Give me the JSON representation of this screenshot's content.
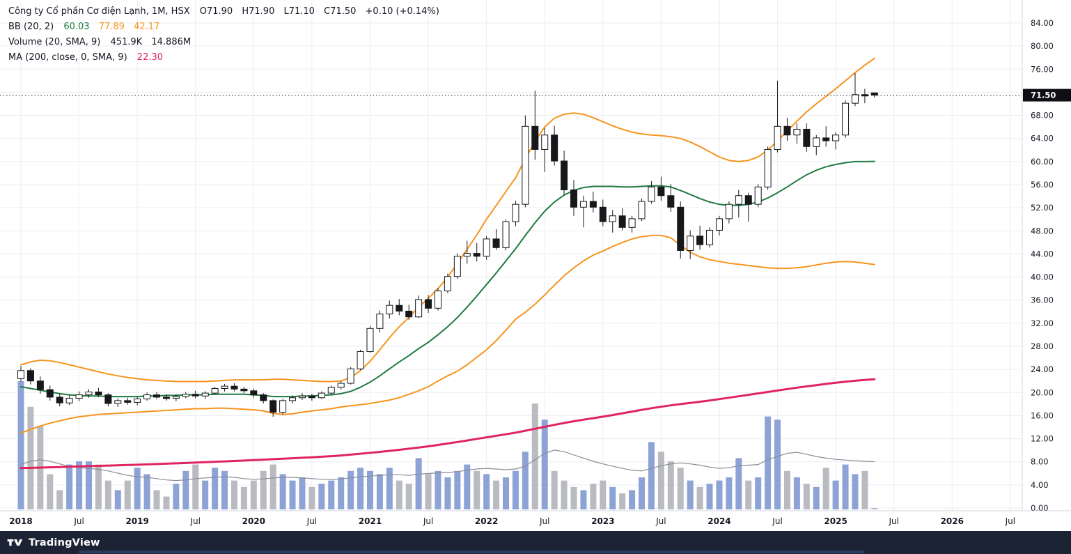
{
  "legend": {
    "symbol": {
      "title": "Công ty Cổ phần Cơ điện Lạnh, 1M, HSX",
      "open": "O71.90",
      "high": "H71.90",
      "low": "L71.10",
      "close": "C71.50",
      "change": "+0.10 (+0.14%)"
    },
    "bb": {
      "label": "BB (20, 2)",
      "basis": "60.03",
      "upper": "77.89",
      "lower": "42.17"
    },
    "volume": {
      "label": "Volume (20, SMA, 9)",
      "value": "451.9K",
      "sma": "14.886M"
    },
    "ma": {
      "label": "MA (200, close, 0, SMA, 9)",
      "value": "22.30"
    }
  },
  "price_label": "71.50",
  "footer": {
    "brand": "TradingView"
  },
  "chart_data": {
    "type": "candlestick",
    "timeframe": "1M",
    "y_axis": {
      "min": 0,
      "max": 84,
      "step": 4
    },
    "last_price": 71.5,
    "x_ticks": [
      [
        0,
        "2018",
        true
      ],
      [
        6,
        "Jul",
        false
      ],
      [
        12,
        "2019",
        true
      ],
      [
        18,
        "Jul",
        false
      ],
      [
        24,
        "2020",
        true
      ],
      [
        30,
        "Jul",
        false
      ],
      [
        36,
        "2021",
        true
      ],
      [
        42,
        "Jul",
        false
      ],
      [
        48,
        "2022",
        true
      ],
      [
        54,
        "Jul",
        false
      ],
      [
        60,
        "2023",
        true
      ],
      [
        66,
        "Jul",
        false
      ],
      [
        72,
        "2024",
        true
      ],
      [
        78,
        "Jul",
        false
      ],
      [
        84,
        "2025",
        true
      ],
      [
        90,
        "Jul",
        false
      ],
      [
        96,
        "2026",
        true
      ],
      [
        102,
        "Jul",
        false
      ]
    ],
    "candles": [
      [
        "2018-01",
        22.4,
        24.6,
        21.9,
        23.8,
        40
      ],
      [
        "2018-02",
        23.8,
        24.2,
        21.4,
        22.0,
        32
      ],
      [
        "2018-03",
        22.0,
        22.8,
        19.8,
        20.5,
        26
      ],
      [
        "2018-04",
        20.5,
        21.2,
        18.6,
        19.2,
        11
      ],
      [
        "2018-05",
        19.2,
        19.8,
        17.6,
        18.2,
        6
      ],
      [
        "2018-06",
        18.2,
        19.6,
        17.8,
        19.0,
        14
      ],
      [
        "2018-07",
        19.0,
        20.2,
        18.5,
        19.6,
        15
      ],
      [
        "2018-08",
        19.6,
        20.6,
        19.1,
        20.1,
        15
      ],
      [
        "2018-09",
        20.1,
        20.8,
        19.2,
        19.6,
        14
      ],
      [
        "2018-10",
        19.6,
        19.9,
        17.6,
        18.1,
        9
      ],
      [
        "2018-11",
        18.1,
        19.0,
        17.5,
        18.6,
        6
      ],
      [
        "2018-12",
        18.6,
        19.1,
        17.9,
        18.3,
        9
      ],
      [
        "2019-01",
        18.3,
        19.2,
        17.8,
        18.9,
        13
      ],
      [
        "2019-02",
        18.9,
        20.0,
        18.6,
        19.6,
        11
      ],
      [
        "2019-03",
        19.6,
        20.1,
        18.9,
        19.2,
        6
      ],
      [
        "2019-04",
        19.2,
        19.7,
        18.6,
        19.0,
        4
      ],
      [
        "2019-05",
        19.0,
        19.7,
        18.5,
        19.3,
        8
      ],
      [
        "2019-06",
        19.3,
        20.1,
        19.0,
        19.7,
        12
      ],
      [
        "2019-07",
        19.7,
        20.3,
        19.0,
        19.4,
        14
      ],
      [
        "2019-08",
        19.4,
        20.2,
        18.9,
        19.9,
        9
      ],
      [
        "2019-09",
        19.9,
        21.0,
        19.6,
        20.7,
        13
      ],
      [
        "2019-10",
        20.7,
        21.5,
        20.2,
        21.1,
        12
      ],
      [
        "2019-11",
        21.1,
        21.6,
        20.2,
        20.6,
        9
      ],
      [
        "2019-12",
        20.6,
        21.0,
        19.9,
        20.3,
        7
      ],
      [
        "2020-01",
        20.3,
        20.7,
        19.1,
        19.6,
        9
      ],
      [
        "2020-02",
        19.6,
        19.9,
        18.1,
        18.6,
        12
      ],
      [
        "2020-03",
        18.6,
        18.8,
        15.8,
        16.6,
        14
      ],
      [
        "2020-04",
        16.6,
        18.9,
        16.2,
        18.6,
        11
      ],
      [
        "2020-05",
        18.6,
        19.5,
        18.1,
        19.1,
        9
      ],
      [
        "2020-06",
        19.1,
        19.9,
        18.7,
        19.4,
        10
      ],
      [
        "2020-07",
        19.4,
        19.8,
        18.6,
        19.1,
        7
      ],
      [
        "2020-08",
        19.1,
        20.2,
        18.9,
        19.9,
        8
      ],
      [
        "2020-09",
        19.9,
        21.2,
        19.6,
        20.9,
        9
      ],
      [
        "2020-10",
        20.9,
        22.0,
        20.5,
        21.6,
        10
      ],
      [
        "2020-11",
        21.6,
        24.4,
        21.4,
        24.1,
        12
      ],
      [
        "2020-12",
        24.1,
        27.4,
        23.9,
        27.1,
        13
      ],
      [
        "2021-01",
        27.1,
        31.5,
        26.9,
        31.1,
        12
      ],
      [
        "2021-02",
        31.1,
        34.2,
        30.4,
        33.6,
        11
      ],
      [
        "2021-03",
        33.6,
        35.9,
        32.8,
        35.1,
        13
      ],
      [
        "2021-04",
        35.1,
        36.2,
        33.4,
        34.1,
        9
      ],
      [
        "2021-05",
        34.1,
        35.2,
        32.6,
        33.1,
        8
      ],
      [
        "2021-06",
        33.1,
        36.8,
        32.9,
        36.1,
        16
      ],
      [
        "2021-07",
        36.1,
        36.9,
        33.8,
        34.6,
        11
      ],
      [
        "2021-08",
        34.6,
        38.1,
        34.2,
        37.6,
        12
      ],
      [
        "2021-09",
        37.6,
        40.6,
        37.2,
        40.1,
        10
      ],
      [
        "2021-10",
        40.1,
        44.1,
        39.7,
        43.6,
        12
      ],
      [
        "2021-11",
        43.6,
        46.3,
        42.3,
        44.1,
        14
      ],
      [
        "2021-12",
        44.1,
        45.9,
        42.7,
        43.6,
        12
      ],
      [
        "2022-01",
        43.6,
        47.1,
        43.0,
        46.6,
        11
      ],
      [
        "2022-02",
        46.6,
        48.3,
        44.7,
        45.1,
        9
      ],
      [
        "2022-03",
        45.1,
        50.0,
        44.6,
        49.6,
        10
      ],
      [
        "2022-04",
        49.6,
        53.2,
        48.8,
        52.6,
        12
      ],
      [
        "2022-05",
        52.6,
        68.0,
        52.1,
        66.1,
        18
      ],
      [
        "2022-06",
        66.1,
        72.3,
        60.3,
        62.1,
        33
      ],
      [
        "2022-07",
        62.1,
        65.8,
        58.2,
        64.6,
        28
      ],
      [
        "2022-08",
        64.6,
        66.2,
        59.3,
        60.1,
        12
      ],
      [
        "2022-09",
        60.1,
        61.9,
        54.2,
        55.1,
        9
      ],
      [
        "2022-10",
        55.1,
        56.8,
        50.6,
        52.1,
        7
      ],
      [
        "2022-11",
        52.1,
        54.1,
        48.6,
        53.1,
        6
      ],
      [
        "2022-12",
        53.1,
        54.8,
        51.2,
        52.1,
        8
      ],
      [
        "2023-01",
        52.1,
        53.4,
        48.8,
        49.6,
        9
      ],
      [
        "2023-02",
        49.6,
        51.6,
        47.7,
        50.6,
        7
      ],
      [
        "2023-03",
        50.6,
        51.9,
        48.1,
        48.6,
        5
      ],
      [
        "2023-04",
        48.6,
        50.6,
        47.7,
        50.1,
        6
      ],
      [
        "2023-05",
        50.1,
        53.6,
        49.7,
        53.1,
        10
      ],
      [
        "2023-06",
        53.1,
        56.6,
        52.7,
        55.6,
        21
      ],
      [
        "2023-07",
        55.6,
        57.4,
        53.2,
        54.1,
        18
      ],
      [
        "2023-08",
        54.1,
        56.1,
        51.3,
        52.1,
        15
      ],
      [
        "2023-09",
        52.1,
        53.1,
        43.2,
        44.6,
        13
      ],
      [
        "2023-10",
        44.6,
        48.1,
        43.1,
        47.1,
        9
      ],
      [
        "2023-11",
        47.1,
        48.9,
        44.7,
        45.6,
        7
      ],
      [
        "2023-12",
        45.6,
        48.6,
        45.1,
        48.1,
        8
      ],
      [
        "2024-01",
        48.1,
        50.6,
        47.2,
        50.1,
        9
      ],
      [
        "2024-02",
        50.1,
        53.1,
        49.3,
        52.6,
        10
      ],
      [
        "2024-03",
        52.6,
        55.1,
        50.3,
        54.1,
        16
      ],
      [
        "2024-04",
        54.1,
        54.6,
        49.6,
        52.6,
        9
      ],
      [
        "2024-05",
        52.6,
        56.1,
        52.1,
        55.6,
        10
      ],
      [
        "2024-06",
        55.6,
        62.6,
        55.1,
        62.1,
        29
      ],
      [
        "2024-07",
        62.1,
        74.0,
        61.6,
        66.1,
        28
      ],
      [
        "2024-08",
        66.1,
        67.6,
        63.6,
        64.6,
        12
      ],
      [
        "2024-09",
        64.6,
        66.6,
        63.1,
        65.6,
        10
      ],
      [
        "2024-10",
        65.6,
        66.6,
        61.7,
        62.6,
        8
      ],
      [
        "2024-11",
        62.6,
        64.6,
        61.1,
        64.1,
        7
      ],
      [
        "2024-12",
        64.1,
        66.1,
        62.6,
        63.6,
        13
      ],
      [
        "2025-01",
        63.6,
        65.1,
        62.1,
        64.6,
        9
      ],
      [
        "2025-02",
        64.6,
        70.6,
        64.1,
        70.1,
        14
      ],
      [
        "2025-03",
        70.1,
        75.3,
        69.6,
        71.6,
        11
      ],
      [
        "2025-04",
        71.6,
        72.6,
        70.1,
        71.4,
        12
      ],
      [
        "2025-05",
        71.9,
        71.9,
        71.1,
        71.5,
        0.45
      ]
    ],
    "bb_upper": [
      24.8,
      25.3,
      25.6,
      25.5,
      25.2,
      24.8,
      24.4,
      24.0,
      23.6,
      23.2,
      22.9,
      22.6,
      22.4,
      22.2,
      22.1,
      22.0,
      21.9,
      21.9,
      21.9,
      21.9,
      22.0,
      22.1,
      22.2,
      22.2,
      22.2,
      22.2,
      22.3,
      22.3,
      22.2,
      22.1,
      22.0,
      21.9,
      21.9,
      22.0,
      22.6,
      23.8,
      25.4,
      27.4,
      29.5,
      31.4,
      33.0,
      34.8,
      36.3,
      38.0,
      40.0,
      42.4,
      44.8,
      47.3,
      50.0,
      52.4,
      54.8,
      57.2,
      60.5,
      63.5,
      66.0,
      67.5,
      68.2,
      68.4,
      68.2,
      67.6,
      66.9,
      66.2,
      65.6,
      65.1,
      64.8,
      64.6,
      64.5,
      64.3,
      64.0,
      63.4,
      62.6,
      61.7,
      60.8,
      60.2,
      60.0,
      60.2,
      60.8,
      62.0,
      63.6,
      65.3,
      67.0,
      68.6,
      70.0,
      71.3,
      72.6,
      74.0,
      75.4,
      76.7,
      77.89
    ],
    "bb_basis": [
      21.0,
      20.7,
      20.4,
      20.1,
      19.8,
      19.6,
      19.5,
      19.4,
      19.4,
      19.3,
      19.3,
      19.3,
      19.3,
      19.4,
      19.4,
      19.5,
      19.5,
      19.6,
      19.6,
      19.6,
      19.7,
      19.7,
      19.7,
      19.7,
      19.6,
      19.5,
      19.3,
      19.3,
      19.3,
      19.4,
      19.4,
      19.5,
      19.6,
      19.8,
      20.2,
      20.9,
      21.8,
      22.9,
      24.1,
      25.3,
      26.4,
      27.6,
      28.7,
      30.0,
      31.4,
      33.0,
      34.8,
      36.7,
      38.7,
      40.7,
      42.8,
      44.9,
      47.2,
      49.4,
      51.4,
      53.0,
      54.2,
      55.0,
      55.5,
      55.7,
      55.7,
      55.7,
      55.6,
      55.6,
      55.7,
      55.8,
      55.8,
      55.6,
      55.0,
      54.3,
      53.6,
      53.0,
      52.6,
      52.4,
      52.4,
      52.6,
      53.0,
      53.7,
      54.6,
      55.6,
      56.7,
      57.7,
      58.5,
      59.1,
      59.5,
      59.8,
      60.0,
      60.0,
      60.03
    ],
    "bb_lower": [
      13.0,
      13.6,
      14.2,
      14.7,
      15.1,
      15.5,
      15.8,
      16.0,
      16.2,
      16.3,
      16.4,
      16.5,
      16.6,
      16.7,
      16.8,
      16.9,
      17.0,
      17.1,
      17.2,
      17.2,
      17.3,
      17.3,
      17.2,
      17.1,
      17.0,
      16.8,
      16.4,
      16.2,
      16.3,
      16.6,
      16.8,
      17.0,
      17.2,
      17.5,
      17.7,
      17.9,
      18.1,
      18.4,
      18.7,
      19.1,
      19.7,
      20.3,
      21.0,
      22.0,
      22.9,
      23.7,
      24.8,
      26.1,
      27.4,
      29.0,
      30.8,
      32.7,
      33.9,
      35.3,
      36.9,
      38.6,
      40.2,
      41.6,
      42.8,
      43.8,
      44.5,
      45.3,
      46.0,
      46.6,
      47.0,
      47.2,
      47.2,
      46.8,
      45.5,
      44.3,
      43.5,
      43.0,
      42.7,
      42.4,
      42.2,
      42.0,
      41.8,
      41.6,
      41.5,
      41.5,
      41.6,
      41.8,
      42.1,
      42.4,
      42.6,
      42.7,
      42.6,
      42.4,
      42.17
    ],
    "ma200": [
      6.9,
      6.95,
      7.0,
      7.05,
      7.1,
      7.15,
      7.2,
      7.25,
      7.3,
      7.35,
      7.4,
      7.45,
      7.5,
      7.56,
      7.62,
      7.68,
      7.74,
      7.8,
      7.87,
      7.94,
      8.01,
      8.08,
      8.15,
      8.22,
      8.3,
      8.38,
      8.46,
      8.54,
      8.62,
      8.7,
      8.79,
      8.88,
      8.98,
      9.1,
      9.24,
      9.4,
      9.56,
      9.72,
      9.9,
      10.08,
      10.27,
      10.47,
      10.68,
      10.92,
      11.17,
      11.43,
      11.7,
      11.97,
      12.24,
      12.5,
      12.77,
      13.05,
      13.38,
      13.72,
      14.06,
      14.4,
      14.72,
      15.02,
      15.3,
      15.56,
      15.82,
      16.1,
      16.4,
      16.7,
      17.0,
      17.28,
      17.54,
      17.78,
      18.0,
      18.2,
      18.4,
      18.62,
      18.86,
      19.1,
      19.35,
      19.6,
      19.85,
      20.1,
      20.35,
      20.6,
      20.84,
      21.06,
      21.28,
      21.5,
      21.7,
      21.88,
      22.04,
      22.18,
      22.3
    ],
    "vol_sma": [
      14.0,
      15.0,
      15.5,
      15.0,
      14.2,
      13.4,
      13.0,
      12.8,
      12.5,
      12.0,
      11.3,
      10.6,
      10.2,
      10.0,
      9.6,
      9.2,
      9.0,
      9.2,
      9.6,
      9.8,
      10.0,
      10.2,
      10.0,
      9.6,
      9.4,
      9.5,
      9.8,
      10.0,
      10.0,
      9.8,
      9.6,
      9.4,
      9.3,
      9.5,
      9.8,
      10.2,
      10.4,
      10.6,
      10.8,
      10.8,
      10.6,
      11.0,
      11.2,
      11.4,
      11.5,
      11.8,
      12.2,
      12.6,
      12.8,
      12.6,
      12.4,
      12.6,
      13.5,
      15.5,
      17.5,
      18.5,
      18.0,
      17.0,
      16.0,
      15.0,
      14.2,
      13.5,
      12.8,
      12.2,
      12.0,
      12.8,
      13.6,
      14.2,
      14.5,
      14.2,
      13.8,
      13.2,
      12.8,
      13.0,
      13.6,
      13.8,
      14.0,
      15.5,
      16.5,
      17.5,
      17.8,
      17.2,
      16.5,
      16.0,
      15.6,
      15.4,
      15.2,
      15.0,
      14.886
    ],
    "colors": {
      "up_body": "#ffffff",
      "down_body": "#17181b",
      "candle_border": "#17181b",
      "bb_band": "#f7941d",
      "bb_basis": "#1f7a40",
      "ma200": "#e0245e",
      "vol_up": "#8da3d6",
      "vol_down": "#b9bbc0",
      "vol_sma": "#8a8d98",
      "grid": "#ebedf0",
      "axis_text": "#131722",
      "axis_border": "#d1d4dc",
      "last_price_bg": "#0d0f14",
      "footer_bg": "#1c2334"
    }
  }
}
